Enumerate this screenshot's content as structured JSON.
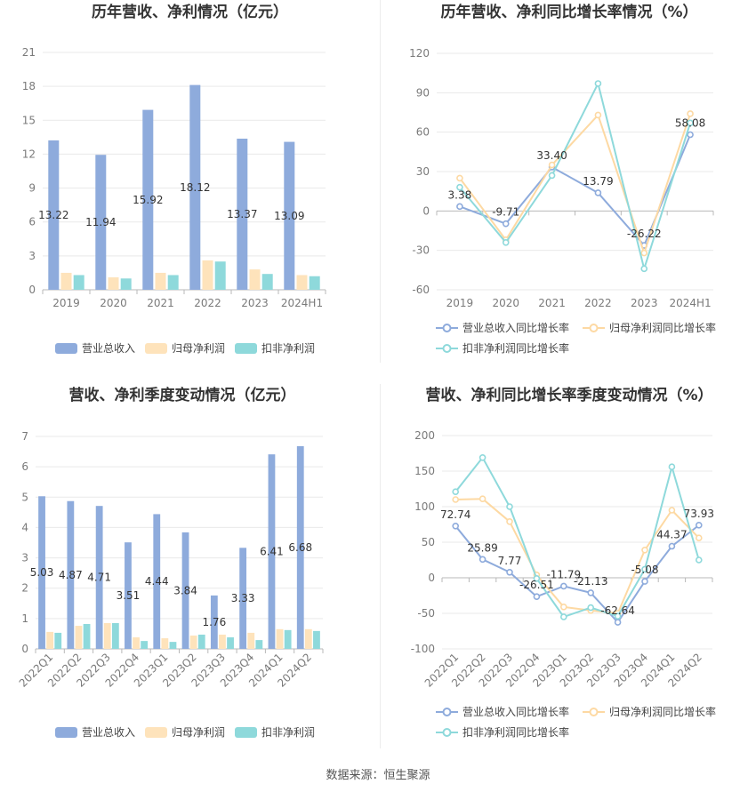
{
  "source": "数据来源：恒生聚源",
  "chart_data": [
    {
      "type": "bar",
      "title": "历年营收、净利情况（亿元）",
      "categories": [
        "2019",
        "2020",
        "2021",
        "2022",
        "2023",
        "2024H1"
      ],
      "series": [
        {
          "name": "营业总收入",
          "values": [
            13.22,
            11.94,
            15.92,
            18.12,
            13.37,
            13.09
          ],
          "color": "#8eabdc",
          "data_labels": true
        },
        {
          "name": "归母净利润",
          "values": [
            1.5,
            1.1,
            1.5,
            2.6,
            1.8,
            1.3
          ],
          "color": "#fee3bb",
          "data_labels": false
        },
        {
          "name": "扣非净利润",
          "values": [
            1.3,
            1.0,
            1.3,
            2.5,
            1.4,
            1.2
          ],
          "color": "#8ed9db",
          "data_labels": false
        }
      ],
      "ylim": [
        0,
        21
      ],
      "yticks": [
        0,
        3,
        6,
        9,
        12,
        15,
        18,
        21
      ],
      "grid": true,
      "legend": "bottom"
    },
    {
      "type": "line",
      "title": "历年营收、净利同比增长率情况（%）",
      "categories": [
        "2019",
        "2020",
        "2021",
        "2022",
        "2023",
        "2024H1"
      ],
      "series": [
        {
          "name": "营业总收入同比增长率",
          "values": [
            3.38,
            -9.71,
            33.4,
            13.79,
            -26.22,
            58.08
          ],
          "color": "#8eabdc",
          "data_labels": true
        },
        {
          "name": "归母净利润同比增长率",
          "values": [
            25,
            -22,
            35,
            73,
            -32,
            74
          ],
          "color": "#fdd9a3",
          "data_labels": false
        },
        {
          "name": "扣非净利润同比增长率",
          "values": [
            18,
            -24,
            27,
            97,
            -44,
            67
          ],
          "color": "#8ed9db",
          "data_labels": false
        }
      ],
      "ylim": [
        -60,
        120
      ],
      "yticks": [
        -60,
        -30,
        0,
        30,
        60,
        90,
        120
      ],
      "grid": true,
      "legend": "bottom"
    },
    {
      "type": "bar",
      "title": "营收、净利季度变动情况（亿元）",
      "categories": [
        "2022Q1",
        "2022Q2",
        "2022Q3",
        "2022Q4",
        "2023Q1",
        "2023Q2",
        "2023Q3",
        "2023Q4",
        "2024Q1",
        "2024Q2"
      ],
      "series": [
        {
          "name": "营业总收入",
          "values": [
            5.03,
            4.87,
            4.71,
            3.51,
            4.44,
            3.84,
            1.76,
            3.33,
            6.41,
            6.68
          ],
          "color": "#8eabdc",
          "data_labels": true
        },
        {
          "name": "归母净利润",
          "values": [
            0.56,
            0.76,
            0.85,
            0.38,
            0.35,
            0.44,
            0.47,
            0.53,
            0.65,
            0.65
          ],
          "color": "#fee3bb",
          "data_labels": false
        },
        {
          "name": "扣非净利润",
          "values": [
            0.53,
            0.82,
            0.85,
            0.26,
            0.23,
            0.47,
            0.38,
            0.29,
            0.62,
            0.59
          ],
          "color": "#8ed9db",
          "data_labels": false
        }
      ],
      "ylim": [
        0,
        7
      ],
      "yticks": [
        0,
        1,
        2,
        3,
        4,
        5,
        6,
        7
      ],
      "grid": true,
      "legend": "bottom"
    },
    {
      "type": "line",
      "title": "营收、净利同比增长率季度变动情况（%）",
      "categories": [
        "2022Q1",
        "2022Q2",
        "2022Q3",
        "2022Q4",
        "2023Q1",
        "2023Q2",
        "2023Q3",
        "2023Q4",
        "2024Q1",
        "2024Q2"
      ],
      "series": [
        {
          "name": "营业总收入同比增长率",
          "values": [
            72.74,
            25.89,
            7.77,
            -26.51,
            -11.79,
            -21.13,
            -62.64,
            -5.08,
            44.37,
            73.93
          ],
          "color": "#8eabdc",
          "data_labels": true
        },
        {
          "name": "归母净利润同比增长率",
          "values": [
            110,
            111,
            79,
            4,
            -41,
            -46,
            -50,
            39,
            95,
            56
          ],
          "color": "#fdd9a3",
          "data_labels": false
        },
        {
          "name": "扣非净利润同比增长率",
          "values": [
            121,
            169,
            100,
            -1,
            -55,
            -42,
            -54,
            12,
            156,
            25
          ],
          "color": "#8ed9db",
          "data_labels": false
        }
      ],
      "ylim": [
        -100,
        200
      ],
      "yticks": [
        -100,
        -50,
        0,
        50,
        100,
        150,
        200
      ],
      "grid": true,
      "legend": "bottom"
    }
  ]
}
